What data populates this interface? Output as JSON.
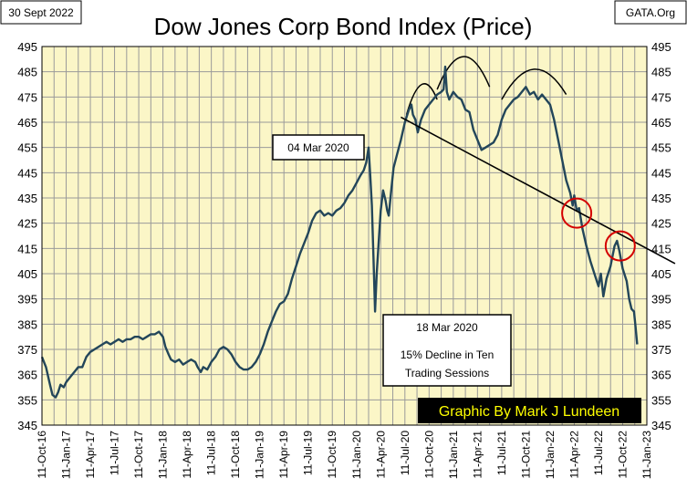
{
  "date_label": "30 Sept 2022",
  "source_label": "GATA.Org",
  "chart_data": {
    "type": "line",
    "title": "Dow Jones Corp Bond Index (Price)",
    "xlabel": "",
    "ylabel": "",
    "ylim": [
      345,
      495
    ],
    "yticks": [
      345,
      355,
      365,
      375,
      385,
      395,
      405,
      415,
      425,
      435,
      445,
      455,
      465,
      475,
      485,
      495
    ],
    "xticks": [
      "11-Oct-16",
      "11-Jan-17",
      "11-Apr-17",
      "11-Jul-17",
      "11-Oct-17",
      "11-Jan-18",
      "11-Apr-18",
      "11-Jul-18",
      "11-Oct-18",
      "11-Jan-19",
      "11-Apr-19",
      "11-Jul-19",
      "11-Oct-19",
      "11-Jan-20",
      "11-Apr-20",
      "11-Jul-20",
      "11-Oct-20",
      "11-Jan-21",
      "11-Apr-21",
      "11-Jul-21",
      "11-Oct-21",
      "11-Jan-22",
      "11-Apr-22",
      "11-Jul-22",
      "11-Oct-22",
      "11-Jan-23"
    ],
    "grid": true,
    "series": [
      {
        "name": "Dow Jones Corp Bond Index",
        "x_unit": "months since 11-Oct-16",
        "points": [
          [
            0.0,
            372
          ],
          [
            0.5,
            368
          ],
          [
            1.0,
            361
          ],
          [
            1.3,
            357
          ],
          [
            1.7,
            356
          ],
          [
            2.0,
            358
          ],
          [
            2.3,
            361
          ],
          [
            2.7,
            360
          ],
          [
            3.0,
            362
          ],
          [
            3.5,
            364
          ],
          [
            4.0,
            366
          ],
          [
            4.5,
            368
          ],
          [
            5.0,
            368
          ],
          [
            5.5,
            372
          ],
          [
            6.0,
            374
          ],
          [
            6.5,
            375
          ],
          [
            7.0,
            376
          ],
          [
            7.5,
            377
          ],
          [
            8.0,
            378
          ],
          [
            8.5,
            377
          ],
          [
            9.0,
            378
          ],
          [
            9.5,
            379
          ],
          [
            10.0,
            378
          ],
          [
            10.5,
            379
          ],
          [
            11.0,
            379
          ],
          [
            11.5,
            380
          ],
          [
            12.0,
            380
          ],
          [
            12.5,
            379
          ],
          [
            13.0,
            380
          ],
          [
            13.5,
            381
          ],
          [
            14.0,
            381
          ],
          [
            14.5,
            382
          ],
          [
            15.0,
            380
          ],
          [
            15.3,
            376
          ],
          [
            15.7,
            373
          ],
          [
            16.0,
            371
          ],
          [
            16.5,
            370
          ],
          [
            17.0,
            371
          ],
          [
            17.5,
            369
          ],
          [
            18.0,
            370
          ],
          [
            18.5,
            371
          ],
          [
            19.0,
            370
          ],
          [
            19.3,
            368
          ],
          [
            19.7,
            366
          ],
          [
            20.0,
            368
          ],
          [
            20.5,
            367
          ],
          [
            21.0,
            370
          ],
          [
            21.5,
            372
          ],
          [
            22.0,
            375
          ],
          [
            22.5,
            376
          ],
          [
            23.0,
            375
          ],
          [
            23.5,
            373
          ],
          [
            24.0,
            370
          ],
          [
            24.5,
            368
          ],
          [
            25.0,
            367
          ],
          [
            25.5,
            367
          ],
          [
            26.0,
            368
          ],
          [
            26.5,
            370
          ],
          [
            27.0,
            373
          ],
          [
            27.5,
            377
          ],
          [
            28.0,
            382
          ],
          [
            28.5,
            386
          ],
          [
            29.0,
            390
          ],
          [
            29.5,
            393
          ],
          [
            30.0,
            394
          ],
          [
            30.5,
            397
          ],
          [
            31.0,
            403
          ],
          [
            31.5,
            408
          ],
          [
            32.0,
            413
          ],
          [
            32.5,
            417
          ],
          [
            33.0,
            421
          ],
          [
            33.5,
            426
          ],
          [
            34.0,
            429
          ],
          [
            34.5,
            430
          ],
          [
            35.0,
            428
          ],
          [
            35.5,
            429
          ],
          [
            36.0,
            428
          ],
          [
            36.5,
            430
          ],
          [
            37.0,
            431
          ],
          [
            37.5,
            433
          ],
          [
            38.0,
            436
          ],
          [
            38.5,
            438
          ],
          [
            39.0,
            441
          ],
          [
            39.5,
            444
          ],
          [
            39.9,
            446
          ],
          [
            40.2,
            449
          ],
          [
            40.5,
            455
          ],
          [
            40.7,
            444
          ],
          [
            40.9,
            432
          ],
          [
            41.1,
            412
          ],
          [
            41.3,
            390
          ],
          [
            41.5,
            405
          ],
          [
            41.8,
            420
          ],
          [
            42.0,
            430
          ],
          [
            42.3,
            438
          ],
          [
            42.6,
            434
          ],
          [
            42.8,
            430
          ],
          [
            43.0,
            428
          ],
          [
            43.3,
            438
          ],
          [
            43.6,
            447
          ],
          [
            44.0,
            452
          ],
          [
            44.5,
            458
          ],
          [
            45.0,
            465
          ],
          [
            45.5,
            470
          ],
          [
            45.8,
            472
          ],
          [
            46.0,
            468
          ],
          [
            46.3,
            466
          ],
          [
            46.6,
            461
          ],
          [
            47.0,
            466
          ],
          [
            47.5,
            470
          ],
          [
            48.0,
            472
          ],
          [
            48.5,
            474
          ],
          [
            49.0,
            476
          ],
          [
            49.5,
            477
          ],
          [
            49.8,
            478
          ],
          [
            50.0,
            487
          ],
          [
            50.2,
            477
          ],
          [
            50.5,
            474
          ],
          [
            51.0,
            477
          ],
          [
            51.5,
            475
          ],
          [
            52.0,
            474
          ],
          [
            52.5,
            470
          ],
          [
            53.0,
            469
          ],
          [
            53.5,
            462
          ],
          [
            54.0,
            458
          ],
          [
            54.5,
            454
          ],
          [
            55.0,
            455
          ],
          [
            55.5,
            456
          ],
          [
            56.0,
            457
          ],
          [
            56.5,
            460
          ],
          [
            57.0,
            466
          ],
          [
            57.5,
            470
          ],
          [
            58.0,
            472
          ],
          [
            58.5,
            474
          ],
          [
            59.0,
            475
          ],
          [
            59.5,
            477
          ],
          [
            60.0,
            479
          ],
          [
            60.5,
            476
          ],
          [
            61.0,
            477
          ],
          [
            61.5,
            474
          ],
          [
            62.0,
            476
          ],
          [
            62.5,
            474
          ],
          [
            63.0,
            472
          ],
          [
            63.5,
            466
          ],
          [
            64.0,
            458
          ],
          [
            64.5,
            450
          ],
          [
            65.0,
            442
          ],
          [
            65.5,
            437
          ],
          [
            65.8,
            432
          ],
          [
            66.0,
            436
          ],
          [
            66.3,
            430
          ],
          [
            66.6,
            431
          ],
          [
            67.0,
            423
          ],
          [
            67.5,
            416
          ],
          [
            68.0,
            410
          ],
          [
            68.5,
            405
          ],
          [
            69.0,
            400
          ],
          [
            69.3,
            405
          ],
          [
            69.6,
            396
          ],
          [
            70.0,
            403
          ],
          [
            70.5,
            408
          ],
          [
            71.0,
            416
          ],
          [
            71.3,
            418
          ],
          [
            71.6,
            414
          ],
          [
            72.0,
            407
          ],
          [
            72.5,
            402
          ],
          [
            72.8,
            395
          ],
          [
            73.1,
            391
          ],
          [
            73.4,
            390
          ],
          [
            73.6,
            384
          ],
          [
            73.8,
            377
          ]
        ]
      }
    ],
    "trendline": {
      "start": [
        44.5,
        467
      ],
      "end": [
        78.5,
        409
      ]
    },
    "highlight_circles": [
      {
        "x": 66.3,
        "y": 429,
        "color": "#d40000"
      },
      {
        "x": 71.7,
        "y": 416,
        "color": "#d40000"
      }
    ],
    "peak_arcs": [
      {
        "from": [
          45.2,
          468
        ],
        "to": [
          49.0,
          474
        ],
        "peak": 480
      },
      {
        "from": [
          49.0,
          478
        ],
        "to": [
          55.5,
          479
        ],
        "peak": 491
      },
      {
        "from": [
          57.0,
          474
        ],
        "to": [
          65.0,
          476
        ],
        "peak": 486
      }
    ],
    "annotations": [
      {
        "text": "04 Mar 2020"
      },
      {
        "lines": [
          "18 Mar 2020",
          "15% Decline in Ten",
          "Trading Sessions"
        ]
      }
    ],
    "credit": "Graphic By Mark J Lundeen",
    "colors": {
      "plot_background": "#fbf6c7",
      "grid": "#9a9a9a",
      "line": "#23465a",
      "trendline": "#000000",
      "circle": "#d40000",
      "credit_bg": "#000000",
      "credit_text": "#ffff00"
    }
  }
}
